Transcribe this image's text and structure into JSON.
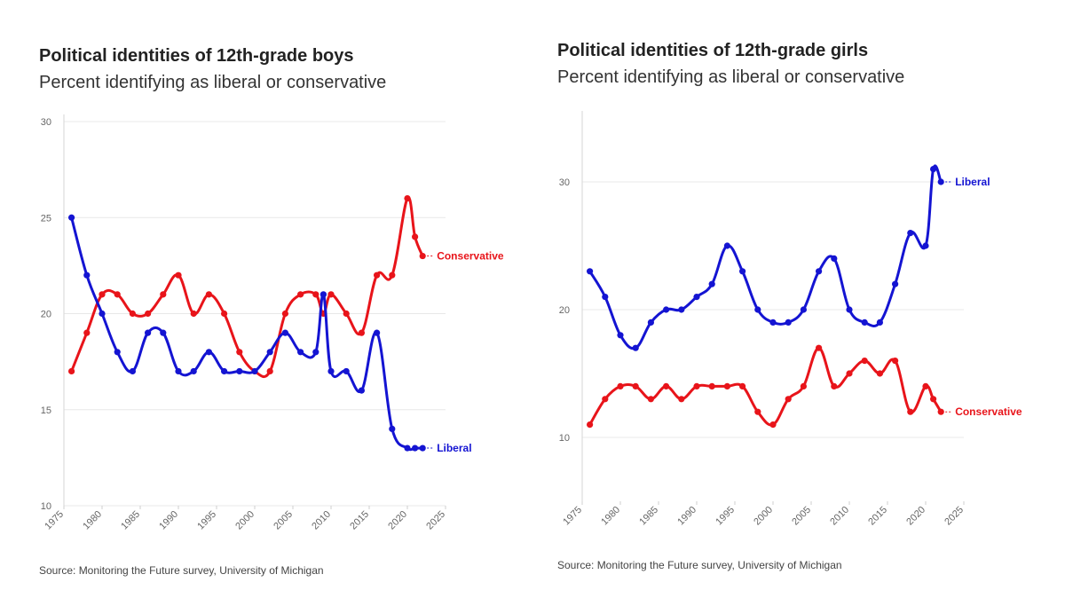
{
  "chart_data": [
    {
      "type": "line",
      "title": "Political identities of 12th-grade boys",
      "subtitle": "Percent identifying as liberal or conservative",
      "source": "Source: Monitoring the Future survey, University of Michigan",
      "xlim": [
        1975,
        2025
      ],
      "ylim": [
        10,
        30
      ],
      "x_ticks": [
        1975,
        1980,
        1985,
        1990,
        1995,
        2000,
        2005,
        2010,
        2015,
        2020,
        2025
      ],
      "y_ticks": [
        10,
        15,
        20,
        25,
        30
      ],
      "grid": "horizontal",
      "series": [
        {
          "name": "Conservative",
          "color": "#e8141a",
          "x": [
            1976,
            1978,
            1980,
            1982,
            1984,
            1986,
            1988,
            1990,
            1992,
            1994,
            1996,
            1998,
            2000,
            2002,
            2004,
            2006,
            2008,
            2009,
            2010,
            2012,
            2014,
            2016,
            2018,
            2020,
            2021,
            2022
          ],
          "y": [
            17,
            19,
            21,
            21,
            20,
            20,
            21,
            22,
            20,
            21,
            20,
            18,
            17,
            17,
            20,
            21,
            21,
            20,
            21,
            20,
            19,
            22,
            22,
            26,
            24,
            23
          ]
        },
        {
          "name": "Liberal",
          "color": "#1414d2",
          "x": [
            1976,
            1978,
            1980,
            1982,
            1984,
            1986,
            1988,
            1990,
            1992,
            1994,
            1996,
            1998,
            2000,
            2002,
            2004,
            2006,
            2008,
            2009,
            2010,
            2012,
            2014,
            2016,
            2018,
            2020,
            2021,
            2022
          ],
          "y": [
            25,
            22,
            20,
            18,
            17,
            19,
            19,
            17,
            17,
            18,
            17,
            17,
            17,
            18,
            19,
            18,
            18,
            21,
            17,
            17,
            16,
            19,
            14,
            13,
            13,
            13
          ]
        }
      ]
    },
    {
      "type": "line",
      "title": "Political identities of 12th-grade girls",
      "subtitle": "Percent identifying as liberal or conservative",
      "source": "Source: Monitoring the Future survey, University of Michigan",
      "xlim": [
        1975,
        2025
      ],
      "ylim": [
        5,
        35
      ],
      "x_ticks": [
        1975,
        1980,
        1985,
        1990,
        1995,
        2000,
        2005,
        2010,
        2015,
        2020,
        2025
      ],
      "y_ticks": [
        10,
        20,
        30
      ],
      "grid": "horizontal",
      "series": [
        {
          "name": "Liberal",
          "color": "#1414d2",
          "x": [
            1976,
            1978,
            1980,
            1982,
            1984,
            1986,
            1988,
            1990,
            1992,
            1994,
            1996,
            1998,
            2000,
            2002,
            2004,
            2006,
            2008,
            2010,
            2012,
            2014,
            2016,
            2018,
            2020,
            2021,
            2022
          ],
          "y": [
            23,
            21,
            18,
            17,
            19,
            20,
            20,
            21,
            22,
            25,
            23,
            20,
            19,
            19,
            20,
            23,
            24,
            20,
            19,
            19,
            22,
            26,
            25,
            31,
            30
          ]
        },
        {
          "name": "Conservative",
          "color": "#e8141a",
          "x": [
            1976,
            1978,
            1980,
            1982,
            1984,
            1986,
            1988,
            1990,
            1992,
            1994,
            1996,
            1998,
            2000,
            2002,
            2004,
            2006,
            2008,
            2010,
            2012,
            2014,
            2016,
            2018,
            2020,
            2021,
            2022
          ],
          "y": [
            11,
            13,
            14,
            14,
            13,
            14,
            13,
            14,
            14,
            14,
            14,
            12,
            11,
            13,
            14,
            17,
            14,
            15,
            16,
            15,
            16,
            12,
            14,
            13,
            12
          ]
        }
      ]
    }
  ]
}
